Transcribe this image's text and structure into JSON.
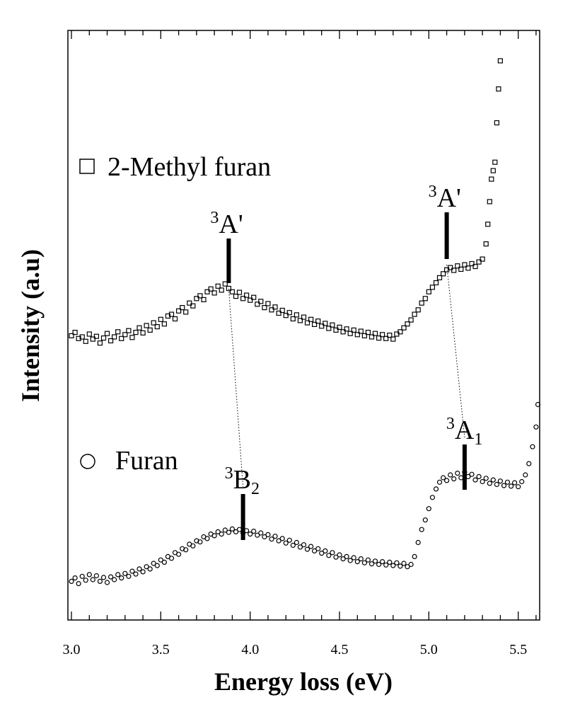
{
  "chart_data": {
    "type": "scatter",
    "xlabel": "Energy loss (eV)",
    "ylabel": "Intensity (a.u)",
    "xlim": [
      3.0,
      5.62
    ],
    "ylim": [
      0,
      100
    ],
    "x_ticks": [
      "3.0",
      "3.5",
      "4.0",
      "4.5",
      "5.0",
      "5.5"
    ],
    "y_scale": "arbitrary units, no tick labels",
    "legend_placement": "left, next to each curve",
    "series": [
      {
        "name": "2-Methyl furan",
        "marker": "open-square",
        "points": [
          [
            3.0,
            49.2
          ],
          [
            3.02,
            49.8
          ],
          [
            3.04,
            48.7
          ],
          [
            3.06,
            49.0
          ],
          [
            3.08,
            48.2
          ],
          [
            3.1,
            49.5
          ],
          [
            3.12,
            48.6
          ],
          [
            3.14,
            49.1
          ],
          [
            3.16,
            47.9
          ],
          [
            3.18,
            48.8
          ],
          [
            3.2,
            49.6
          ],
          [
            3.22,
            48.3
          ],
          [
            3.24,
            49.0
          ],
          [
            3.26,
            49.9
          ],
          [
            3.28,
            48.7
          ],
          [
            3.3,
            49.4
          ],
          [
            3.32,
            50.1
          ],
          [
            3.34,
            48.9
          ],
          [
            3.36,
            49.8
          ],
          [
            3.38,
            50.6
          ],
          [
            3.4,
            49.7
          ],
          [
            3.42,
            51.0
          ],
          [
            3.44,
            50.2
          ],
          [
            3.46,
            51.5
          ],
          [
            3.48,
            50.8
          ],
          [
            3.5,
            52.1
          ],
          [
            3.52,
            51.3
          ],
          [
            3.54,
            52.7
          ],
          [
            3.56,
            53.0
          ],
          [
            3.58,
            52.2
          ],
          [
            3.6,
            53.6
          ],
          [
            3.62,
            54.2
          ],
          [
            3.64,
            53.4
          ],
          [
            3.66,
            55.0
          ],
          [
            3.68,
            54.5
          ],
          [
            3.7,
            55.8
          ],
          [
            3.72,
            56.3
          ],
          [
            3.74,
            55.6
          ],
          [
            3.76,
            57.0
          ],
          [
            3.78,
            57.5
          ],
          [
            3.8,
            56.8
          ],
          [
            3.82,
            58.0
          ],
          [
            3.84,
            57.3
          ],
          [
            3.86,
            58.4
          ],
          [
            3.88,
            57.6
          ],
          [
            3.9,
            57.0
          ],
          [
            3.92,
            56.2
          ],
          [
            3.94,
            56.9
          ],
          [
            3.96,
            55.8
          ],
          [
            3.98,
            56.4
          ],
          [
            4.0,
            55.5
          ],
          [
            4.02,
            56.0
          ],
          [
            4.04,
            54.8
          ],
          [
            4.06,
            55.3
          ],
          [
            4.08,
            54.2
          ],
          [
            4.1,
            54.9
          ],
          [
            4.12,
            53.8
          ],
          [
            4.14,
            54.3
          ],
          [
            4.16,
            53.2
          ],
          [
            4.18,
            53.7
          ],
          [
            4.2,
            52.8
          ],
          [
            4.22,
            53.3
          ],
          [
            4.24,
            52.2
          ],
          [
            4.26,
            52.9
          ],
          [
            4.28,
            51.9
          ],
          [
            4.3,
            52.5
          ],
          [
            4.32,
            51.5
          ],
          [
            4.34,
            52.1
          ],
          [
            4.36,
            51.2
          ],
          [
            4.38,
            51.8
          ],
          [
            4.4,
            50.9
          ],
          [
            4.42,
            51.4
          ],
          [
            4.44,
            50.5
          ],
          [
            4.46,
            51.1
          ],
          [
            4.48,
            50.2
          ],
          [
            4.5,
            50.7
          ],
          [
            4.52,
            49.9
          ],
          [
            4.54,
            50.4
          ],
          [
            4.56,
            49.6
          ],
          [
            4.58,
            50.2
          ],
          [
            4.6,
            49.4
          ],
          [
            4.62,
            50.0
          ],
          [
            4.64,
            49.2
          ],
          [
            4.66,
            49.8
          ],
          [
            4.68,
            49.0
          ],
          [
            4.7,
            49.6
          ],
          [
            4.72,
            48.8
          ],
          [
            4.74,
            49.4
          ],
          [
            4.76,
            48.7
          ],
          [
            4.78,
            49.3
          ],
          [
            4.8,
            48.6
          ],
          [
            4.82,
            49.5
          ],
          [
            4.84,
            49.9
          ],
          [
            4.86,
            50.6
          ],
          [
            4.88,
            51.3
          ],
          [
            4.9,
            52.0
          ],
          [
            4.92,
            53.0
          ],
          [
            4.94,
            53.8
          ],
          [
            4.96,
            55.0
          ],
          [
            4.98,
            55.8
          ],
          [
            5.0,
            57.0
          ],
          [
            5.02,
            57.8
          ],
          [
            5.04,
            58.6
          ],
          [
            5.06,
            59.5
          ],
          [
            5.08,
            60.2
          ],
          [
            5.1,
            60.9
          ],
          [
            5.12,
            61.3
          ],
          [
            5.14,
            60.8
          ],
          [
            5.16,
            61.6
          ],
          [
            5.18,
            61.0
          ],
          [
            5.2,
            61.8
          ],
          [
            5.22,
            61.2
          ],
          [
            5.24,
            62.0
          ],
          [
            5.26,
            61.5
          ],
          [
            5.28,
            62.3
          ],
          [
            5.3,
            62.8
          ],
          [
            5.32,
            65.5
          ],
          [
            5.33,
            69.0
          ],
          [
            5.34,
            73.0
          ],
          [
            5.35,
            77.0
          ],
          [
            5.36,
            78.5
          ],
          [
            5.37,
            80.0
          ],
          [
            5.38,
            87.0
          ],
          [
            5.39,
            93.0
          ],
          [
            5.4,
            98.0
          ]
        ]
      },
      {
        "name": "Furan",
        "marker": "open-circle",
        "points": [
          [
            3.0,
            5.6
          ],
          [
            3.02,
            6.2
          ],
          [
            3.04,
            5.2
          ],
          [
            3.06,
            6.5
          ],
          [
            3.08,
            5.8
          ],
          [
            3.1,
            6.8
          ],
          [
            3.12,
            5.9
          ],
          [
            3.14,
            6.6
          ],
          [
            3.16,
            5.6
          ],
          [
            3.18,
            6.3
          ],
          [
            3.2,
            5.4
          ],
          [
            3.22,
            6.4
          ],
          [
            3.24,
            5.9
          ],
          [
            3.26,
            6.8
          ],
          [
            3.28,
            6.2
          ],
          [
            3.3,
            7.0
          ],
          [
            3.32,
            6.5
          ],
          [
            3.34,
            7.4
          ],
          [
            3.36,
            6.9
          ],
          [
            3.38,
            7.8
          ],
          [
            3.4,
            7.3
          ],
          [
            3.42,
            8.2
          ],
          [
            3.44,
            7.8
          ],
          [
            3.46,
            8.8
          ],
          [
            3.48,
            8.4
          ],
          [
            3.5,
            9.4
          ],
          [
            3.52,
            9.0
          ],
          [
            3.54,
            10.0
          ],
          [
            3.56,
            9.7
          ],
          [
            3.58,
            10.7
          ],
          [
            3.6,
            10.4
          ],
          [
            3.62,
            11.4
          ],
          [
            3.64,
            11.2
          ],
          [
            3.66,
            12.2
          ],
          [
            3.68,
            11.9
          ],
          [
            3.7,
            12.8
          ],
          [
            3.72,
            12.6
          ],
          [
            3.74,
            13.5
          ],
          [
            3.76,
            13.2
          ],
          [
            3.78,
            14.0
          ],
          [
            3.8,
            13.7
          ],
          [
            3.82,
            14.4
          ],
          [
            3.84,
            14.0
          ],
          [
            3.86,
            14.7
          ],
          [
            3.88,
            14.3
          ],
          [
            3.9,
            14.9
          ],
          [
            3.92,
            14.4
          ],
          [
            3.94,
            14.8
          ],
          [
            3.96,
            14.2
          ],
          [
            3.98,
            14.6
          ],
          [
            4.0,
            14.0
          ],
          [
            4.02,
            14.5
          ],
          [
            4.04,
            13.8
          ],
          [
            4.06,
            14.2
          ],
          [
            4.08,
            13.5
          ],
          [
            4.1,
            13.9
          ],
          [
            4.12,
            13.1
          ],
          [
            4.14,
            13.6
          ],
          [
            4.16,
            12.8
          ],
          [
            4.18,
            13.2
          ],
          [
            4.2,
            12.4
          ],
          [
            4.22,
            12.9
          ],
          [
            4.24,
            12.0
          ],
          [
            4.26,
            12.5
          ],
          [
            4.28,
            11.7
          ],
          [
            4.3,
            12.1
          ],
          [
            4.32,
            11.3
          ],
          [
            4.34,
            11.8
          ],
          [
            4.36,
            11.0
          ],
          [
            4.38,
            11.4
          ],
          [
            4.4,
            10.6
          ],
          [
            4.42,
            11.0
          ],
          [
            4.44,
            10.2
          ],
          [
            4.46,
            10.7
          ],
          [
            4.48,
            9.9
          ],
          [
            4.5,
            10.3
          ],
          [
            4.52,
            9.6
          ],
          [
            4.54,
            10.0
          ],
          [
            4.56,
            9.3
          ],
          [
            4.58,
            9.8
          ],
          [
            4.6,
            9.1
          ],
          [
            4.62,
            9.6
          ],
          [
            4.64,
            8.9
          ],
          [
            4.66,
            9.4
          ],
          [
            4.68,
            8.7
          ],
          [
            4.7,
            9.2
          ],
          [
            4.72,
            8.6
          ],
          [
            4.74,
            9.1
          ],
          [
            4.76,
            8.5
          ],
          [
            4.78,
            9.0
          ],
          [
            4.8,
            8.4
          ],
          [
            4.82,
            8.9
          ],
          [
            4.84,
            8.3
          ],
          [
            4.86,
            8.8
          ],
          [
            4.88,
            8.2
          ],
          [
            4.9,
            8.6
          ],
          [
            4.92,
            10.0
          ],
          [
            4.94,
            12.5
          ],
          [
            4.96,
            14.8
          ],
          [
            4.98,
            16.5
          ],
          [
            5.0,
            18.5
          ],
          [
            5.02,
            20.5
          ],
          [
            5.04,
            22.0
          ],
          [
            5.06,
            23.2
          ],
          [
            5.08,
            24.0
          ],
          [
            5.1,
            23.5
          ],
          [
            5.12,
            24.5
          ],
          [
            5.14,
            23.8
          ],
          [
            5.16,
            24.8
          ],
          [
            5.18,
            24.0
          ],
          [
            5.2,
            25.0
          ],
          [
            5.22,
            24.2
          ],
          [
            5.24,
            24.6
          ],
          [
            5.26,
            23.6
          ],
          [
            5.28,
            24.2
          ],
          [
            5.3,
            23.3
          ],
          [
            5.32,
            23.9
          ],
          [
            5.34,
            23.0
          ],
          [
            5.36,
            23.6
          ],
          [
            5.38,
            22.8
          ],
          [
            5.4,
            23.4
          ],
          [
            5.42,
            22.6
          ],
          [
            5.44,
            23.2
          ],
          [
            5.46,
            22.5
          ],
          [
            5.48,
            23.1
          ],
          [
            5.5,
            22.4
          ],
          [
            5.52,
            23.3
          ],
          [
            5.54,
            24.5
          ],
          [
            5.56,
            26.5
          ],
          [
            5.58,
            29.5
          ],
          [
            5.6,
            33.0
          ],
          [
            5.61,
            37.0
          ]
        ]
      }
    ],
    "annotations": [
      {
        "name": "methylfuran-low",
        "base": "A'",
        "sup": "3",
        "sub": "",
        "x": 3.88
      },
      {
        "name": "methylfuran-high",
        "base": "A'",
        "sup": "3",
        "sub": "",
        "x": 5.1
      },
      {
        "name": "furan-low",
        "base": "B",
        "sup": "3",
        "sub": "2",
        "x": 3.96
      },
      {
        "name": "furan-high",
        "base": "A",
        "sup": "3",
        "sub": "1",
        "x": 5.2
      }
    ]
  }
}
